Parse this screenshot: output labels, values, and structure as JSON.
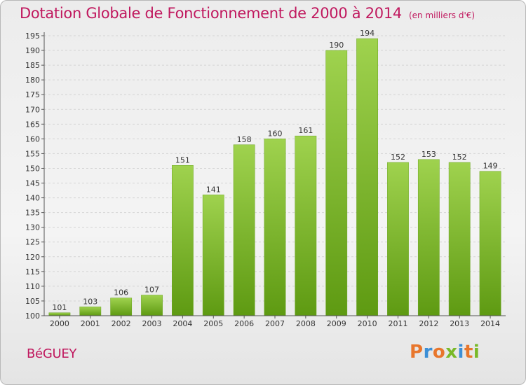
{
  "header": {
    "title": "Dotation Globale de Fonctionnement de 2000 à 2014",
    "unit": "(en milliers d'€)"
  },
  "footer": {
    "city": "BéGUEY",
    "logo": "Proxiti",
    "logo_colors": [
      "#e8762c",
      "#3c8fd6",
      "#e8762c",
      "#79b928",
      "#3c8fd6",
      "#e8762c",
      "#79b928"
    ]
  },
  "chart_data": {
    "type": "bar",
    "title": "Dotation Globale de Fonctionnement de 2000 à 2014",
    "subtitle": "(en milliers d'€)",
    "xlabel": "",
    "ylabel": "",
    "categories": [
      "2000",
      "2001",
      "2002",
      "2003",
      "2004",
      "2005",
      "2006",
      "2007",
      "2008",
      "2009",
      "2010",
      "2011",
      "2012",
      "2013",
      "2014"
    ],
    "values": [
      101,
      103,
      106,
      107,
      151,
      141,
      158,
      160,
      161,
      190,
      194,
      152,
      153,
      152,
      149
    ],
    "ylim": [
      100,
      195
    ],
    "yticks": [
      100,
      105,
      110,
      115,
      120,
      125,
      130,
      135,
      140,
      145,
      150,
      155,
      160,
      165,
      170,
      175,
      180,
      185,
      190,
      195
    ],
    "grid": true,
    "legend": "none",
    "bar_color_top": "#9fd24e",
    "bar_color_bottom": "#5e9a12"
  }
}
